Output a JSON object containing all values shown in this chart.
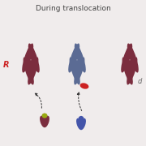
{
  "title": "During translocation",
  "title_fontsize": 6.5,
  "title_color": "#444444",
  "bg_color": "#f0ecec",
  "chr1_color": "#7B2D3E",
  "chr2_color": "#5B6B94",
  "chr2_light_color": "#7B8BB4",
  "chr3_color": "#7B2D3E",
  "seg_red_color": "#CC2222",
  "seg_yellow_color": "#99AA11",
  "seg_maroon_color": "#7B2D3E",
  "seg_blue_color": "#4455AA",
  "label_r_color": "#CC2222",
  "label_d_color": "#666666",
  "arrow_color": "#333333"
}
